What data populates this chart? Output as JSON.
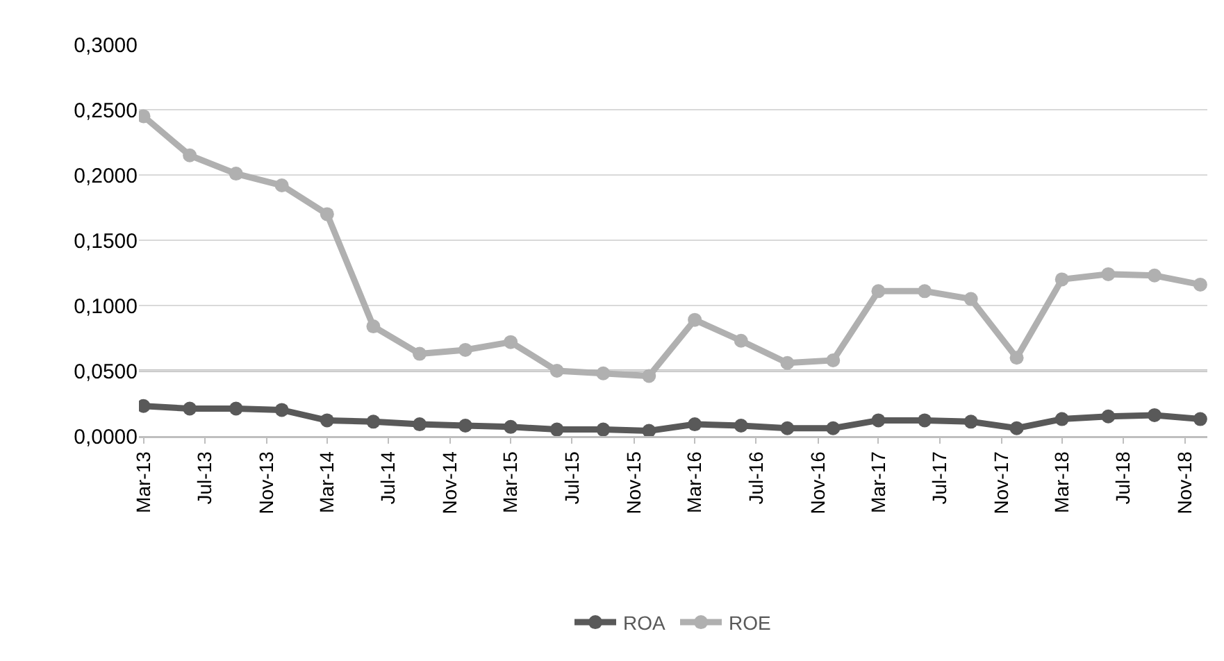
{
  "chart_data": {
    "type": "line",
    "x": [
      "2013-03",
      "2013-06",
      "2013-09",
      "2013-12",
      "2014-03",
      "2014-06",
      "2014-09",
      "2014-12",
      "2015-03",
      "2015-06",
      "2015-09",
      "2015-12",
      "2016-03",
      "2016-06",
      "2016-09",
      "2016-12",
      "2017-03",
      "2017-06",
      "2017-09",
      "2017-12",
      "2018-03",
      "2018-06",
      "2018-09",
      "2018-12"
    ],
    "series": [
      {
        "name": "ROA",
        "color": "#595959",
        "values": [
          0.023,
          0.021,
          0.021,
          0.02,
          0.012,
          0.011,
          0.009,
          0.008,
          0.007,
          0.005,
          0.005,
          0.004,
          0.009,
          0.008,
          0.006,
          0.006,
          0.012,
          0.012,
          0.011,
          0.006,
          0.013,
          0.015,
          0.016,
          0.013
        ]
      },
      {
        "name": "ROE",
        "color": "#b0b0b0",
        "values": [
          0.245,
          0.215,
          0.201,
          0.192,
          0.17,
          0.084,
          0.063,
          0.066,
          0.072,
          0.05,
          0.048,
          0.046,
          0.089,
          0.073,
          0.056,
          0.058,
          0.111,
          0.111,
          0.105,
          0.06,
          0.12,
          0.124,
          0.123,
          0.116
        ]
      }
    ],
    "xlim": [
      "2013-02-20",
      "2018-12-15"
    ],
    "xticks": [
      {
        "value": "2013-03",
        "label": "Mar-13"
      },
      {
        "value": "2013-07",
        "label": "Jul-13"
      },
      {
        "value": "2013-11",
        "label": "Nov-13"
      },
      {
        "value": "2014-03",
        "label": "Mar-14"
      },
      {
        "value": "2014-07",
        "label": "Jul-14"
      },
      {
        "value": "2014-11",
        "label": "Nov-14"
      },
      {
        "value": "2015-03",
        "label": "Mar-15"
      },
      {
        "value": "2015-07",
        "label": "Jul-15"
      },
      {
        "value": "2015-11",
        "label": "Nov-15"
      },
      {
        "value": "2016-03",
        "label": "Mar-16"
      },
      {
        "value": "2016-07",
        "label": "Jul-16"
      },
      {
        "value": "2016-11",
        "label": "Nov-16"
      },
      {
        "value": "2017-03",
        "label": "Mar-17"
      },
      {
        "value": "2017-07",
        "label": "Jul-17"
      },
      {
        "value": "2017-11",
        "label": "Nov-17"
      },
      {
        "value": "2018-03",
        "label": "Mar-18"
      },
      {
        "value": "2018-07",
        "label": "Jul-18"
      },
      {
        "value": "2018-11",
        "label": "Nov-18"
      }
    ],
    "ylim": [
      0,
      0.3
    ],
    "yticks": [
      {
        "value": 0,
        "label": "0,0000"
      },
      {
        "value": 0.05,
        "label": "0,0500"
      },
      {
        "value": 0.1,
        "label": "0,1000"
      },
      {
        "value": 0.15,
        "label": "0,1500"
      },
      {
        "value": 0.2,
        "label": "0,2000"
      },
      {
        "value": 0.25,
        "label": "0,2500"
      },
      {
        "value": 0.3,
        "label": "0,3000"
      }
    ],
    "ref_lines": [
      {
        "axis": "y",
        "value": 0.05,
        "color": "#000000"
      }
    ],
    "grid": "y",
    "legend": "bottom",
    "marker": "circle",
    "line_style": "solid"
  }
}
